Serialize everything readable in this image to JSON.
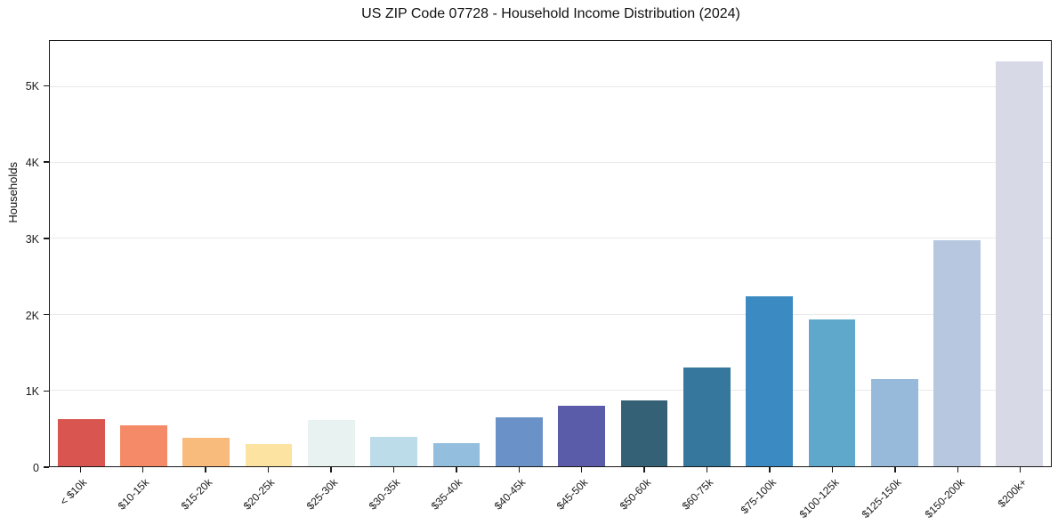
{
  "title": "US ZIP Code 07728 - Household Income Distribution (2024)",
  "chart_data": {
    "type": "bar",
    "title": "US ZIP Code 07728 - Household Income Distribution (2024)",
    "xlabel": "",
    "ylabel": "Households",
    "categories": [
      "< $10k",
      "$10-15k",
      "$15-20k",
      "$20-25k",
      "$25-30k",
      "$30-35k",
      "$35-40k",
      "$40-45k",
      "$45-50k",
      "$50-60k",
      "$60-75k",
      "$75-100k",
      "$100-125k",
      "$125-150k",
      "$150-200k",
      "$200k+"
    ],
    "values": [
      620,
      540,
      370,
      290,
      615,
      385,
      310,
      650,
      800,
      870,
      1295,
      2240,
      1935,
      1150,
      2975,
      5330
    ],
    "bar_colors": [
      "#d8564f",
      "#f48a67",
      "#f8bb7c",
      "#fce3a2",
      "#e7f2f1",
      "#bddcea",
      "#93bedd",
      "#6b92c8",
      "#5a5caa",
      "#346176",
      "#36789d",
      "#3b8bc2",
      "#5fa7cb",
      "#97bada",
      "#b8c7e0",
      "#d8d9e6"
    ],
    "ylim": [
      0,
      5600
    ],
    "yticks": [
      {
        "value": 0,
        "label": "0"
      },
      {
        "value": 1000,
        "label": "1K"
      },
      {
        "value": 2000,
        "label": "2K"
      },
      {
        "value": 3000,
        "label": "3K"
      },
      {
        "value": 4000,
        "label": "4K"
      },
      {
        "value": 5000,
        "label": "5K"
      }
    ],
    "grid": "horizontal",
    "legend": "none",
    "x_tick_rotation": 45,
    "background": "#ffffff",
    "spine_color": "#1a1a1a",
    "gridline_color": "#e9e9e9"
  }
}
